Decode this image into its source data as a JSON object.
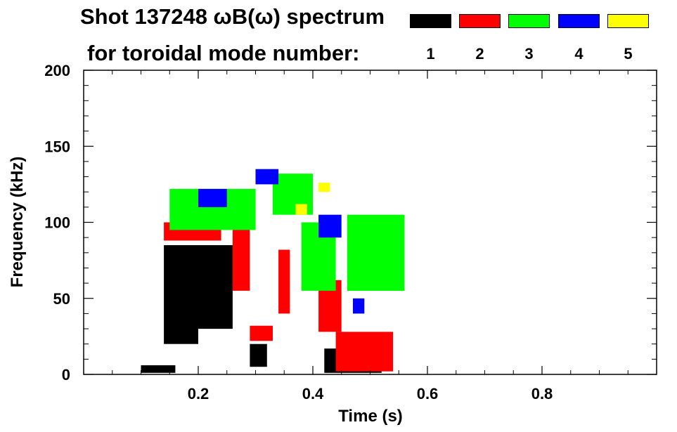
{
  "chart_data": {
    "type": "heatmap",
    "title_line_1": "Shot 137248 ωB(ω) spectrum",
    "title_line_2": "for toroidal mode number:",
    "xlabel": "Time (s)",
    "ylabel": "Frequency (kHz)",
    "xlim": [
      0.0,
      1.0
    ],
    "ylim": [
      0,
      200
    ],
    "x_ticks": [
      0.2,
      0.4,
      0.6,
      0.8
    ],
    "x_tick_labels": [
      "0.2",
      "0.4",
      "0.6",
      "0.8"
    ],
    "y_ticks": [
      0,
      50,
      100,
      150,
      200
    ],
    "y_tick_labels": [
      "0",
      "50",
      "100",
      "150",
      "200"
    ],
    "legend": [
      {
        "mode": "1",
        "color": "#000000"
      },
      {
        "mode": "2",
        "color": "#ff0000"
      },
      {
        "mode": "3",
        "color": "#00ff00"
      },
      {
        "mode": "4",
        "color": "#0000ff"
      },
      {
        "mode": "5",
        "color": "#ffff00"
      }
    ],
    "regions": [
      {
        "mode": 1,
        "color": "#000000",
        "t_start": 0.1,
        "t_end": 0.16,
        "f_low": 1,
        "f_high": 6
      },
      {
        "mode": 1,
        "color": "#000000",
        "t_start": 0.14,
        "t_end": 0.2,
        "f_low": 20,
        "f_high": 85
      },
      {
        "mode": 1,
        "color": "#000000",
        "t_start": 0.2,
        "t_end": 0.26,
        "f_low": 30,
        "f_high": 85
      },
      {
        "mode": 1,
        "color": "#000000",
        "t_start": 0.29,
        "t_end": 0.32,
        "f_low": 5,
        "f_high": 20
      },
      {
        "mode": 1,
        "color": "#000000",
        "t_start": 0.42,
        "t_end": 0.52,
        "f_low": 1,
        "f_high": 17
      },
      {
        "mode": 2,
        "color": "#ff0000",
        "t_start": 0.14,
        "t_end": 0.24,
        "f_low": 88,
        "f_high": 100
      },
      {
        "mode": 2,
        "color": "#ff0000",
        "t_start": 0.26,
        "t_end": 0.29,
        "f_low": 55,
        "f_high": 112
      },
      {
        "mode": 2,
        "color": "#ff0000",
        "t_start": 0.29,
        "t_end": 0.33,
        "f_low": 22,
        "f_high": 32
      },
      {
        "mode": 2,
        "color": "#ff0000",
        "t_start": 0.34,
        "t_end": 0.36,
        "f_low": 40,
        "f_high": 82
      },
      {
        "mode": 2,
        "color": "#ff0000",
        "t_start": 0.41,
        "t_end": 0.45,
        "f_low": 28,
        "f_high": 62
      },
      {
        "mode": 2,
        "color": "#ff0000",
        "t_start": 0.44,
        "t_end": 0.54,
        "f_low": 2,
        "f_high": 28
      },
      {
        "mode": 3,
        "color": "#00ff00",
        "t_start": 0.15,
        "t_end": 0.3,
        "f_low": 95,
        "f_high": 122
      },
      {
        "mode": 3,
        "color": "#00ff00",
        "t_start": 0.33,
        "t_end": 0.4,
        "f_low": 105,
        "f_high": 132
      },
      {
        "mode": 3,
        "color": "#00ff00",
        "t_start": 0.38,
        "t_end": 0.44,
        "f_low": 55,
        "f_high": 100
      },
      {
        "mode": 3,
        "color": "#00ff00",
        "t_start": 0.46,
        "t_end": 0.56,
        "f_low": 55,
        "f_high": 105
      },
      {
        "mode": 4,
        "color": "#0000ff",
        "t_start": 0.2,
        "t_end": 0.25,
        "f_low": 110,
        "f_high": 122
      },
      {
        "mode": 4,
        "color": "#0000ff",
        "t_start": 0.3,
        "t_end": 0.34,
        "f_low": 125,
        "f_high": 135
      },
      {
        "mode": 4,
        "color": "#0000ff",
        "t_start": 0.41,
        "t_end": 0.45,
        "f_low": 90,
        "f_high": 105
      },
      {
        "mode": 4,
        "color": "#0000ff",
        "t_start": 0.47,
        "t_end": 0.49,
        "f_low": 40,
        "f_high": 50
      },
      {
        "mode": 5,
        "color": "#ffff00",
        "t_start": 0.37,
        "t_end": 0.39,
        "f_low": 105,
        "f_high": 112
      },
      {
        "mode": 5,
        "color": "#ffff00",
        "t_start": 0.41,
        "t_end": 0.43,
        "f_low": 120,
        "f_high": 126
      }
    ]
  }
}
